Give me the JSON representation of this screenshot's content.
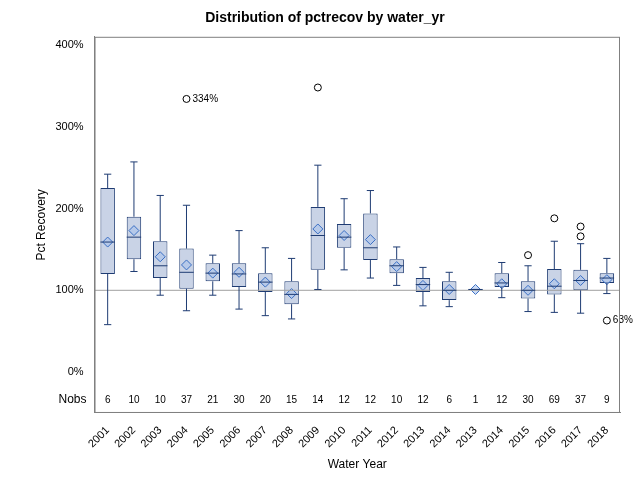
{
  "chart_data": {
    "type": "boxplot",
    "title": "Distribution of pctrecov by water_yr",
    "x_label": "Water Year",
    "y_label": "Pct Recovery",
    "categories": [
      "2001",
      "2002",
      "2003",
      "2004",
      "2005",
      "2006",
      "2007",
      "2008",
      "2009",
      "2010",
      "2011",
      "2012",
      "2013",
      "2014",
      "2013",
      "2014",
      "2015",
      "2016",
      "2017",
      "2018"
    ],
    "boxes": [
      {
        "whisker_low": 58,
        "q1": 120,
        "median": 159,
        "q3": 225,
        "whisker_high": 242,
        "mean": 159,
        "outliers": []
      },
      {
        "whisker_low": 123,
        "q1": 138,
        "median": 165,
        "q3": 190,
        "whisker_high": 257,
        "mean": 173,
        "outliers": []
      },
      {
        "whisker_low": 94,
        "q1": 115,
        "median": 130,
        "q3": 160,
        "whisker_high": 216,
        "mean": 141,
        "outliers": []
      },
      {
        "whisker_low": 75,
        "q1": 102,
        "median": 122,
        "q3": 151,
        "whisker_high": 204,
        "mean": 131,
        "outliers": [
          334
        ]
      },
      {
        "whisker_low": 94,
        "q1": 111,
        "median": 121,
        "q3": 133,
        "whisker_high": 143,
        "mean": 121,
        "outliers": []
      },
      {
        "whisker_low": 77,
        "q1": 104,
        "median": 120,
        "q3": 133,
        "whisker_high": 173,
        "mean": 122,
        "outliers": []
      },
      {
        "whisker_low": 69,
        "q1": 98,
        "median": 110,
        "q3": 121,
        "whisker_high": 152,
        "mean": 110,
        "outliers": []
      },
      {
        "whisker_low": 65,
        "q1": 83,
        "median": 95,
        "q3": 111,
        "whisker_high": 139,
        "mean": 96,
        "outliers": []
      },
      {
        "whisker_low": 101,
        "q1": 125,
        "median": 167,
        "q3": 202,
        "whisker_high": 253,
        "mean": 175,
        "outliers": [
          348
        ]
      },
      {
        "whisker_low": 125,
        "q1": 152,
        "median": 165,
        "q3": 181,
        "whisker_high": 212,
        "mean": 167,
        "outliers": []
      },
      {
        "whisker_low": 115,
        "q1": 137,
        "median": 152,
        "q3": 194,
        "whisker_high": 222,
        "mean": 162,
        "outliers": []
      },
      {
        "whisker_low": 106,
        "q1": 121,
        "median": 130,
        "q3": 138,
        "whisker_high": 153,
        "mean": 129,
        "outliers": []
      },
      {
        "whisker_low": 81,
        "q1": 98,
        "median": 107,
        "q3": 115,
        "whisker_high": 128,
        "mean": 106,
        "outliers": []
      },
      {
        "whisker_low": 80,
        "q1": 88,
        "median": 100,
        "q3": 111,
        "whisker_high": 122,
        "mean": 101,
        "outliers": []
      },
      {
        "whisker_low": 101,
        "q1": 101,
        "median": 101,
        "q3": 101,
        "whisker_high": 101,
        "mean": 101,
        "outliers": []
      },
      {
        "whisker_low": 91,
        "q1": 104,
        "median": 109,
        "q3": 121,
        "whisker_high": 134,
        "mean": 108,
        "outliers": []
      },
      {
        "whisker_low": 74,
        "q1": 90,
        "median": 100,
        "q3": 111,
        "whisker_high": 130,
        "mean": 100,
        "outliers": [
          143
        ]
      },
      {
        "whisker_low": 73,
        "q1": 95,
        "median": 105,
        "q3": 126,
        "whisker_high": 160,
        "mean": 108,
        "outliers": [
          188
        ]
      },
      {
        "whisker_low": 72,
        "q1": 100,
        "median": 112,
        "q3": 125,
        "whisker_high": 157,
        "mean": 112,
        "outliers": [
          166,
          178
        ]
      },
      {
        "whisker_low": 96,
        "q1": 109,
        "median": 115,
        "q3": 121,
        "whisker_high": 139,
        "mean": 113,
        "outliers": [
          63
        ]
      }
    ],
    "nobs_label": "Nobs",
    "nobs": [
      6,
      10,
      10,
      37,
      21,
      30,
      20,
      15,
      14,
      12,
      12,
      10,
      12,
      6,
      1,
      12,
      30,
      69,
      37,
      9
    ],
    "reference_line": 100,
    "annotations": [
      {
        "category": "2004",
        "value": 334,
        "text": "334%"
      },
      {
        "category": "2018",
        "value": 63,
        "text": "63%"
      }
    ],
    "color": "#c9d3e6",
    "ylim": [
      -50,
      410
    ],
    "yticks": [
      {
        "value": 0,
        "label": "0%"
      },
      {
        "value": 100,
        "label": "100%"
      },
      {
        "value": 200,
        "label": "200%"
      },
      {
        "value": 300,
        "label": "300%"
      },
      {
        "value": 400,
        "label": "400%"
      }
    ],
    "grid": false
  }
}
